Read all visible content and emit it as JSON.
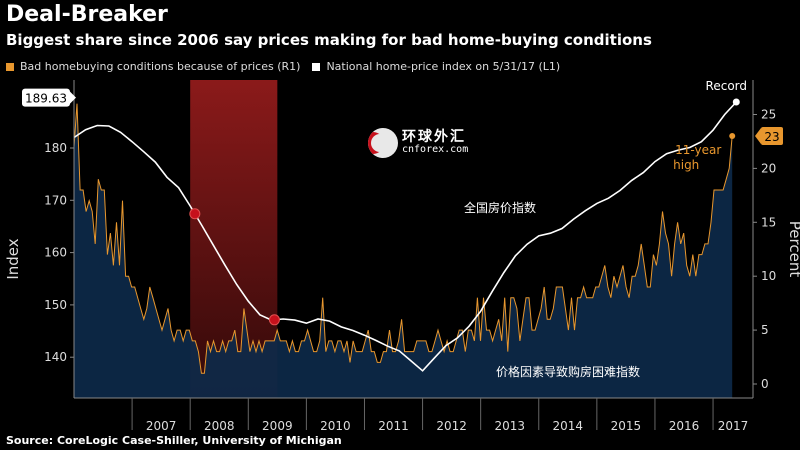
{
  "header": {
    "title": "Deal-Breaker",
    "subtitle": "Biggest share since 2006 say prices making for bad home-buying conditions"
  },
  "legend": {
    "items": [
      {
        "label": "Bad homebuying conditions because of prices (R1)",
        "color": "#e8972e"
      },
      {
        "label": "National home-price index on 5/31/17 (L1)",
        "color": "#ffffff"
      }
    ]
  },
  "source": "Source: CoreLogic Case-Shiller, University of Michigan",
  "logo": {
    "cn": "环球外汇",
    "en": "cnforex.com"
  },
  "colors": {
    "area_fill": "#0d2a4a",
    "recession": "#8b1a1a",
    "bar_line": "#e8972e",
    "index_line": "#ffffff"
  },
  "chart_data": {
    "type": "line",
    "x_tick_labels": [
      "2007",
      "2008",
      "2009",
      "2010",
      "2011",
      "2012",
      "2013",
      "2014",
      "2015",
      "2016",
      "2017"
    ],
    "xlim": [
      2006.0,
      2017.55
    ],
    "left_axis": {
      "label": "Index",
      "ticks": [
        "140",
        "150",
        "160",
        "170",
        "180"
      ],
      "ylim": [
        132.2,
        193.0
      ]
    },
    "right_axis": {
      "label": "Percent",
      "ticks": [
        "0",
        "5",
        "10",
        "15",
        "20",
        "25"
      ],
      "ylim": [
        -1.3,
        28.2
      ]
    },
    "shaded_period": {
      "start": 2008.0,
      "end": 2009.5
    },
    "series": [
      {
        "name": "National home-price index on 5/31/17",
        "axis": "left",
        "points": [
          [
            2006.0,
            182.0
          ],
          [
            2006.2,
            183.5
          ],
          [
            2006.4,
            184.3
          ],
          [
            2006.6,
            184.2
          ],
          [
            2006.8,
            183.0
          ],
          [
            2007.0,
            181.2
          ],
          [
            2007.2,
            179.3
          ],
          [
            2007.4,
            177.3
          ],
          [
            2007.6,
            174.4
          ],
          [
            2007.8,
            172.4
          ],
          [
            2008.0,
            168.9
          ],
          [
            2008.2,
            165.2
          ],
          [
            2008.4,
            161.4
          ],
          [
            2008.6,
            157.6
          ],
          [
            2008.8,
            153.9
          ],
          [
            2009.0,
            150.7
          ],
          [
            2009.2,
            148.1
          ],
          [
            2009.4,
            147.1
          ],
          [
            2009.6,
            147.3
          ],
          [
            2009.8,
            147.1
          ],
          [
            2010.0,
            146.5
          ],
          [
            2010.2,
            147.3
          ],
          [
            2010.4,
            146.9
          ],
          [
            2010.6,
            145.8
          ],
          [
            2010.8,
            145.1
          ],
          [
            2011.0,
            144.2
          ],
          [
            2011.2,
            143.2
          ],
          [
            2011.4,
            142.1
          ],
          [
            2011.6,
            141.2
          ],
          [
            2011.8,
            139.3
          ],
          [
            2012.0,
            137.4
          ],
          [
            2012.2,
            139.8
          ],
          [
            2012.4,
            142.2
          ],
          [
            2012.6,
            143.7
          ],
          [
            2012.8,
            145.9
          ],
          [
            2013.0,
            148.8
          ],
          [
            2013.2,
            152.6
          ],
          [
            2013.4,
            156.2
          ],
          [
            2013.6,
            159.4
          ],
          [
            2013.8,
            161.6
          ],
          [
            2014.0,
            163.2
          ],
          [
            2014.2,
            163.7
          ],
          [
            2014.4,
            164.6
          ],
          [
            2014.6,
            166.4
          ],
          [
            2014.8,
            168.0
          ],
          [
            2015.0,
            169.4
          ],
          [
            2015.2,
            170.4
          ],
          [
            2015.4,
            171.9
          ],
          [
            2015.6,
            173.8
          ],
          [
            2015.8,
            175.3
          ],
          [
            2016.0,
            177.4
          ],
          [
            2016.2,
            178.9
          ],
          [
            2016.4,
            179.6
          ],
          [
            2016.6,
            180.1
          ],
          [
            2016.8,
            181.2
          ],
          [
            2017.0,
            183.4
          ],
          [
            2017.2,
            186.4
          ],
          [
            2017.4,
            188.8
          ]
        ],
        "last_value": 189.63,
        "annotation": "Record"
      },
      {
        "name": "Bad homebuying conditions because of prices",
        "axis": "right",
        "values": [
          22,
          26,
          18,
          18,
          16,
          17,
          16,
          13,
          19,
          18,
          18,
          12,
          14,
          11,
          15,
          11,
          17,
          10,
          10,
          9,
          9,
          8,
          7,
          6,
          7,
          9,
          8,
          7,
          6,
          5,
          6,
          7,
          5,
          4,
          5,
          5,
          4,
          5,
          5,
          4,
          4,
          3,
          1,
          1,
          4,
          3,
          4,
          3,
          3,
          4,
          3,
          4,
          4,
          5,
          3,
          3,
          7,
          5,
          3,
          4,
          3,
          4,
          3,
          4,
          4,
          4,
          4,
          5,
          4,
          4,
          4,
          3,
          4,
          3,
          3,
          4,
          4,
          5,
          4,
          3,
          3,
          4,
          8,
          3,
          4,
          4,
          3,
          4,
          4,
          3,
          4,
          2,
          4,
          3,
          3,
          3,
          4,
          5,
          3,
          3,
          2,
          2,
          3,
          3,
          5,
          3,
          3,
          4,
          6,
          3,
          3,
          3,
          3,
          4,
          4,
          4,
          4,
          3,
          3,
          4,
          5,
          4,
          3,
          4,
          3,
          3,
          4,
          5,
          5,
          3,
          5,
          5,
          4,
          8,
          4,
          8,
          5,
          5,
          4,
          5,
          6,
          4,
          8,
          3,
          8,
          8,
          7,
          4,
          6,
          8,
          8,
          5,
          5,
          6,
          7,
          9,
          6,
          6,
          7,
          9,
          9,
          9,
          7,
          5,
          8,
          5,
          8,
          8,
          9,
          8,
          8,
          8,
          9,
          9,
          10,
          11,
          9,
          8,
          10,
          9,
          10,
          11,
          9,
          8,
          10,
          10,
          11,
          13,
          11,
          9,
          9,
          12,
          11,
          13,
          16,
          14,
          13,
          10,
          13,
          15,
          13,
          14,
          11,
          10,
          12,
          10,
          12,
          12,
          13,
          13,
          15,
          18,
          18,
          18,
          18,
          19,
          20,
          23
        ],
        "last_value": 23,
        "annotation": "11-year high"
      }
    ],
    "annotations": [
      {
        "text": "全国房价指数"
      },
      {
        "text": "价格因素导致购房困难指数"
      }
    ]
  }
}
